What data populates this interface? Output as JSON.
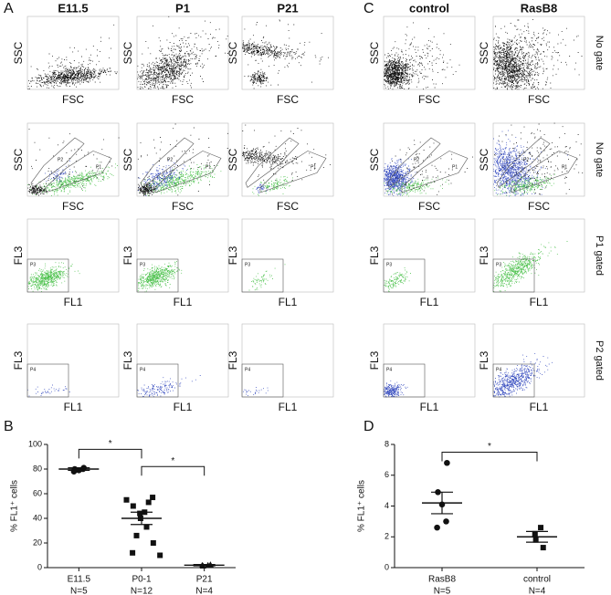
{
  "flow_panels": [
    {
      "letter": "A",
      "columns": [
        "E11.5",
        "P1",
        "P21"
      ]
    },
    {
      "letter": "C",
      "columns": [
        "control",
        "RasB8"
      ]
    }
  ],
  "rows": [
    {
      "label": "No gate",
      "x_label": "FSC",
      "y_label": "SSC",
      "gates": []
    },
    {
      "label": "No gate",
      "x_label": "FSC",
      "y_label": "SSC",
      "gates": [
        "P2",
        "P1"
      ]
    },
    {
      "label": "P1 gated",
      "x_label": "FL1",
      "y_label": "FL3",
      "gates": [
        "P3"
      ]
    },
    {
      "label": "P2 gated",
      "x_label": "FL1",
      "y_label": "FL3",
      "gates": [
        "P4"
      ]
    }
  ],
  "chart_data": [
    {
      "type": "dot",
      "panel_label": "B",
      "y_label": "% FL1⁺ cells",
      "ylim": [
        0,
        100
      ],
      "yticks": [
        0,
        20,
        40,
        60,
        80,
        100
      ],
      "color": "#111111",
      "series": [
        {
          "name": "E11.5",
          "n_label": "N=5",
          "marker": "circle",
          "values": [
            81,
            80,
            79,
            80,
            78
          ],
          "mean": 80,
          "sem": 1
        },
        {
          "name": "P0-1",
          "n_label": "N=12",
          "marker": "square",
          "values": [
            57,
            55,
            53,
            50,
            45,
            44,
            40,
            33,
            26,
            20,
            12,
            10
          ],
          "mean": 40,
          "sem": 5
        },
        {
          "name": "P21",
          "n_label": "N=4",
          "marker": "triangle",
          "values": [
            2,
            2,
            1.5,
            2.5
          ],
          "mean": 2,
          "sem": 0.5
        }
      ],
      "brackets": [
        {
          "between": [
            "E11.5",
            "P0-1"
          ],
          "y": 96,
          "label": "*"
        },
        {
          "between": [
            "P0-1",
            "P21"
          ],
          "y": 82,
          "label": "*"
        }
      ]
    },
    {
      "type": "dot",
      "panel_label": "D",
      "y_label": "% FL1⁺ cells",
      "ylim": [
        0,
        8
      ],
      "yticks": [
        0,
        2,
        4,
        6,
        8
      ],
      "color": "#111111",
      "series": [
        {
          "name": "RasB8",
          "n_label": "N=5",
          "marker": "circle",
          "values": [
            6.8,
            4.9,
            4.1,
            3.0,
            2.6
          ],
          "mean": 4.2,
          "sem": 0.7
        },
        {
          "name": "control",
          "n_label": "N=4",
          "marker": "square",
          "values": [
            2.6,
            2.2,
            1.8,
            1.3
          ],
          "mean": 2.0,
          "sem": 0.35
        }
      ],
      "brackets": [
        {
          "between": [
            "RasB8",
            "control"
          ],
          "y": 7.5,
          "label": "*"
        }
      ]
    }
  ]
}
